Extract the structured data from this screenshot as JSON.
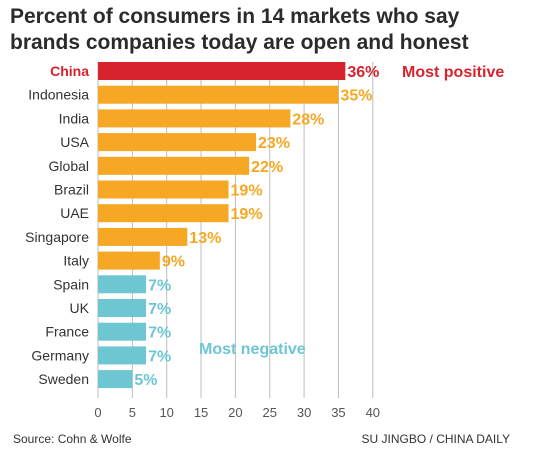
{
  "title_lines": [
    "Percent of consumers in 14 markets who say",
    "brands companies today are open and honest"
  ],
  "source": "Source: Cohn & Wolfe",
  "credit": "SU JINGBO / CHINA DAILY",
  "chart_data": {
    "type": "bar",
    "orientation": "horizontal",
    "categories": [
      "China",
      "Indonesia",
      "India",
      "USA",
      "Global",
      "Brazil",
      "UAE",
      "Singapore",
      "Italy",
      "Spain",
      "UK",
      "France",
      "Germany",
      "Sweden"
    ],
    "values": [
      36,
      35,
      28,
      23,
      22,
      19,
      19,
      13,
      9,
      7,
      7,
      7,
      7,
      5
    ],
    "value_labels": [
      "36%",
      "35%",
      "28%",
      "23%",
      "22%",
      "19%",
      "19%",
      "13%",
      "9%",
      "7%",
      "7%",
      "7%",
      "7%",
      "5%"
    ],
    "groups": [
      "most-positive",
      "middle",
      "middle",
      "middle",
      "middle",
      "middle",
      "middle",
      "middle",
      "middle",
      "most-negative",
      "most-negative",
      "most-negative",
      "most-negative",
      "most-negative"
    ],
    "xlim": [
      0,
      40
    ],
    "xticks": [
      0,
      5,
      10,
      15,
      20,
      25,
      30,
      35,
      40
    ],
    "grid": true,
    "annotations": {
      "most_positive": "Most positive",
      "most_negative": "Most negative"
    },
    "colors": {
      "most-positive": "#d7232d",
      "middle": "#f6a723",
      "most-negative": "#6ec6d3",
      "grid": "#bdbdbd",
      "category_text": "#333333"
    }
  }
}
